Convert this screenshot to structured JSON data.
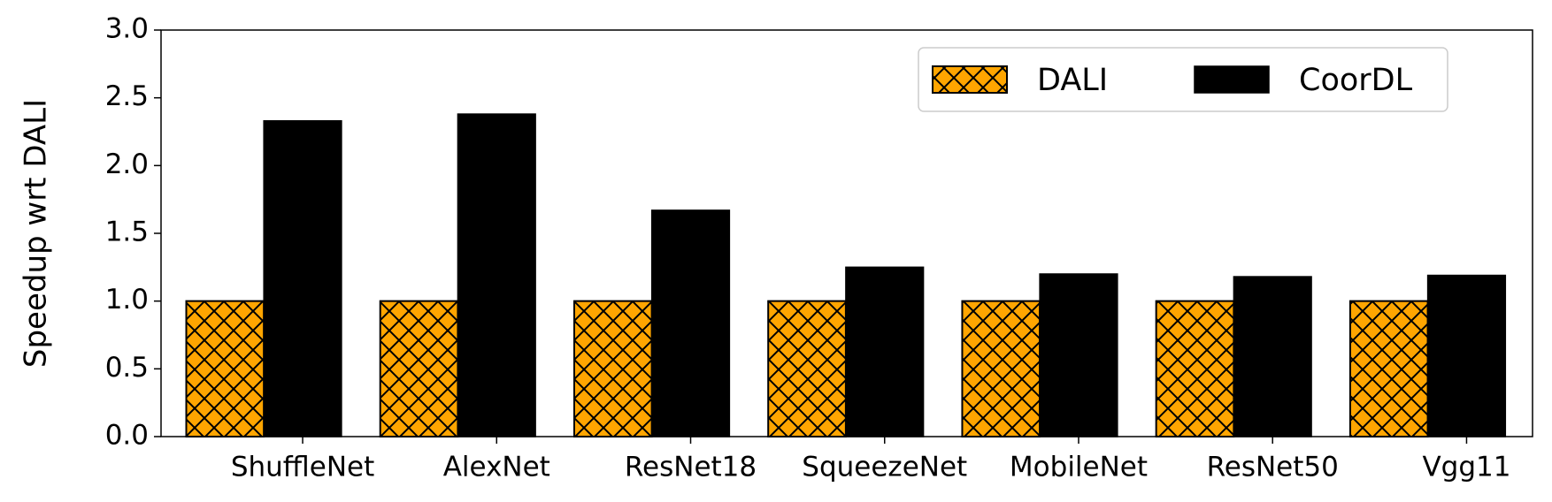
{
  "chart_data": {
    "type": "bar",
    "categories": [
      "ShuffleNet",
      "AlexNet",
      "ResNet18",
      "SqueezeNet",
      "MobileNet",
      "ResNet50",
      "Vgg11"
    ],
    "series": [
      {
        "name": "DALI",
        "color": "#ffa500",
        "hatch": "crosshatch",
        "values": [
          1.0,
          1.0,
          1.0,
          1.0,
          1.0,
          1.0,
          1.0
        ]
      },
      {
        "name": "CoorDL",
        "color": "#000000",
        "values": [
          2.33,
          2.38,
          1.67,
          1.25,
          1.2,
          1.18,
          1.19
        ]
      }
    ],
    "y_label": "Speedup wrt DALI",
    "ylim": [
      0,
      3.0
    ],
    "yticks": [
      {
        "value": 0,
        "label": "0.0"
      },
      {
        "value": 0.5,
        "label": "0.5"
      },
      {
        "value": 1,
        "label": "1.0"
      },
      {
        "value": 1.5,
        "label": "1.5"
      },
      {
        "value": 2,
        "label": "2.0"
      },
      {
        "value": 2.5,
        "label": "2.5"
      },
      {
        "value": 3,
        "label": "3.0"
      }
    ],
    "legend": "upper right"
  }
}
